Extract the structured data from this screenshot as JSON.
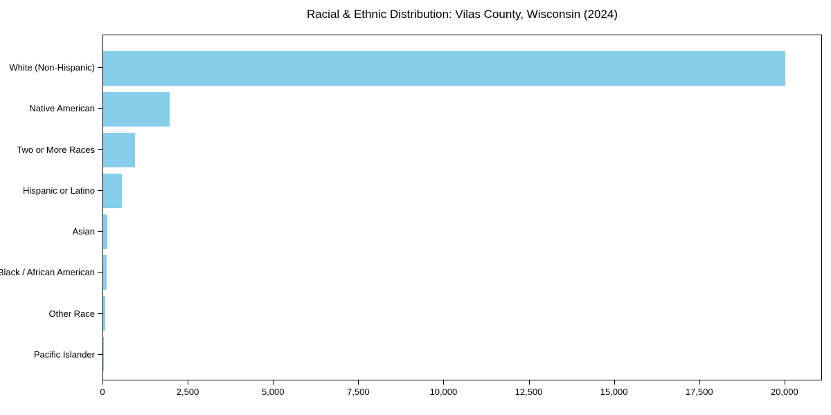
{
  "title": "Racial & Ethnic Distribution: Vilas County, Wisconsin (2024)",
  "colors": {
    "bar": "#87CEEB",
    "background": "#FFFFFF",
    "spine": "#000000",
    "text": "#000000"
  },
  "chart_data": {
    "type": "bar",
    "orientation": "horizontal",
    "title": "Racial & Ethnic Distribution: Vilas County, Wisconsin (2024)",
    "categories": [
      "White (Non-Hispanic)",
      "Native American",
      "Two or More Races",
      "Hispanic or Latino",
      "Asian",
      "Black / African American",
      "Other Race",
      "Pacific Islander"
    ],
    "values": [
      20050,
      1950,
      930,
      550,
      115,
      95,
      70,
      5
    ],
    "bar_color": "#87CEEB",
    "xlabel": "",
    "ylabel": "",
    "xlim": [
      0,
      21100
    ],
    "xticks": [
      0,
      2500,
      5000,
      7500,
      10000,
      12500,
      15000,
      17500,
      20000
    ],
    "xtick_labels": [
      "0",
      "2,500",
      "5,000",
      "7,500",
      "10,000",
      "12,500",
      "15,000",
      "17,500",
      "20,000"
    ],
    "grid": false,
    "legend": null
  }
}
